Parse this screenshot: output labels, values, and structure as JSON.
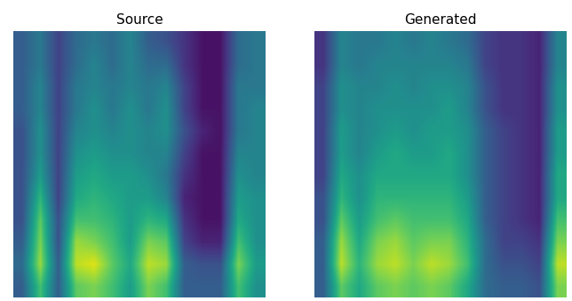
{
  "chart_data": [
    {
      "type": "heatmap",
      "title": "Source",
      "color": "viridis",
      "color_range": [
        0,
        1
      ],
      "tick_labels": false,
      "cells": [
        [
          0.3,
          0.4,
          0.2,
          0.35,
          0.4,
          0.35,
          0.45,
          0.3,
          0.25,
          0.15,
          0.05,
          0.05,
          0.35,
          0.4
        ],
        [
          0.3,
          0.4,
          0.2,
          0.35,
          0.45,
          0.35,
          0.45,
          0.35,
          0.35,
          0.15,
          0.05,
          0.05,
          0.35,
          0.4
        ],
        [
          0.3,
          0.45,
          0.2,
          0.4,
          0.45,
          0.4,
          0.45,
          0.4,
          0.45,
          0.2,
          0.05,
          0.05,
          0.4,
          0.4
        ],
        [
          0.3,
          0.45,
          0.2,
          0.4,
          0.5,
          0.4,
          0.5,
          0.4,
          0.5,
          0.2,
          0.05,
          0.05,
          0.4,
          0.45
        ],
        [
          0.25,
          0.5,
          0.2,
          0.45,
          0.5,
          0.45,
          0.5,
          0.45,
          0.5,
          0.25,
          0.1,
          0.05,
          0.4,
          0.45
        ],
        [
          0.25,
          0.5,
          0.2,
          0.5,
          0.55,
          0.5,
          0.5,
          0.45,
          0.45,
          0.2,
          0.05,
          0.05,
          0.45,
          0.45
        ],
        [
          0.25,
          0.55,
          0.2,
          0.55,
          0.6,
          0.55,
          0.55,
          0.5,
          0.4,
          0.15,
          0.05,
          0.05,
          0.5,
          0.45
        ],
        [
          0.25,
          0.65,
          0.2,
          0.6,
          0.65,
          0.6,
          0.55,
          0.55,
          0.45,
          0.1,
          0.05,
          0.05,
          0.55,
          0.5
        ],
        [
          0.25,
          0.75,
          0.25,
          0.7,
          0.7,
          0.65,
          0.55,
          0.65,
          0.6,
          0.15,
          0.05,
          0.05,
          0.6,
          0.5
        ],
        [
          0.3,
          0.8,
          0.25,
          0.85,
          0.8,
          0.7,
          0.55,
          0.8,
          0.75,
          0.2,
          0.1,
          0.1,
          0.7,
          0.5
        ],
        [
          0.35,
          0.85,
          0.3,
          0.9,
          0.95,
          0.75,
          0.6,
          0.9,
          0.85,
          0.3,
          0.25,
          0.25,
          0.8,
          0.55
        ],
        [
          0.3,
          0.7,
          0.3,
          0.75,
          0.8,
          0.7,
          0.55,
          0.8,
          0.7,
          0.3,
          0.3,
          0.3,
          0.7,
          0.5
        ]
      ]
    },
    {
      "type": "heatmap",
      "title": "Generated",
      "color": "viridis",
      "color_range": [
        0,
        1
      ],
      "tick_labels": false,
      "cells": [
        [
          0.15,
          0.45,
          0.4,
          0.4,
          0.45,
          0.4,
          0.45,
          0.4,
          0.35,
          0.2,
          0.15,
          0.15,
          0.1,
          0.45
        ],
        [
          0.15,
          0.45,
          0.4,
          0.45,
          0.45,
          0.45,
          0.45,
          0.45,
          0.4,
          0.2,
          0.15,
          0.15,
          0.1,
          0.45
        ],
        [
          0.2,
          0.5,
          0.45,
          0.45,
          0.5,
          0.45,
          0.5,
          0.5,
          0.45,
          0.25,
          0.15,
          0.15,
          0.1,
          0.5
        ],
        [
          0.2,
          0.5,
          0.45,
          0.5,
          0.5,
          0.5,
          0.5,
          0.55,
          0.45,
          0.25,
          0.15,
          0.15,
          0.1,
          0.5
        ],
        [
          0.2,
          0.55,
          0.45,
          0.5,
          0.55,
          0.5,
          0.55,
          0.55,
          0.5,
          0.3,
          0.2,
          0.15,
          0.1,
          0.55
        ],
        [
          0.2,
          0.55,
          0.45,
          0.55,
          0.6,
          0.55,
          0.55,
          0.6,
          0.5,
          0.3,
          0.2,
          0.15,
          0.1,
          0.55
        ],
        [
          0.2,
          0.6,
          0.5,
          0.6,
          0.6,
          0.6,
          0.6,
          0.6,
          0.5,
          0.3,
          0.2,
          0.15,
          0.1,
          0.6
        ],
        [
          0.25,
          0.65,
          0.5,
          0.65,
          0.65,
          0.65,
          0.65,
          0.65,
          0.55,
          0.3,
          0.2,
          0.15,
          0.1,
          0.6
        ],
        [
          0.25,
          0.75,
          0.55,
          0.7,
          0.75,
          0.7,
          0.7,
          0.7,
          0.6,
          0.3,
          0.2,
          0.15,
          0.1,
          0.7
        ],
        [
          0.3,
          0.85,
          0.6,
          0.8,
          0.85,
          0.75,
          0.8,
          0.8,
          0.65,
          0.35,
          0.2,
          0.2,
          0.15,
          0.8
        ],
        [
          0.3,
          0.9,
          0.65,
          0.85,
          0.9,
          0.8,
          0.9,
          0.85,
          0.7,
          0.35,
          0.25,
          0.25,
          0.2,
          0.9
        ],
        [
          0.3,
          0.75,
          0.6,
          0.75,
          0.8,
          0.75,
          0.8,
          0.75,
          0.6,
          0.35,
          0.3,
          0.3,
          0.25,
          0.8
        ]
      ]
    }
  ]
}
